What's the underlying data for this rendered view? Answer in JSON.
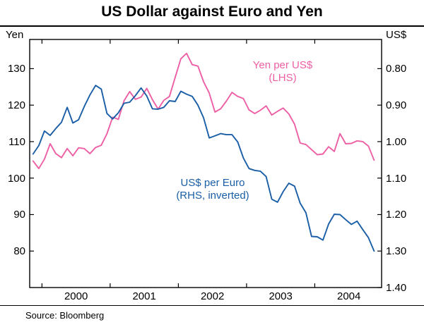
{
  "title": "US Dollar against Euro and Yen",
  "source": "Source: Bloomberg",
  "left_unit": "Yen",
  "right_unit": "US$",
  "annotations": {
    "yen": {
      "line1": "Yen per US$",
      "line2": "(LHS)",
      "color": "#ed5fa4"
    },
    "euro": {
      "line1": "US$ per Euro",
      "line2": "(RHS, inverted)",
      "color": "#1a5ea6"
    }
  },
  "chart_data": {
    "type": "line",
    "title": "US Dollar against Euro and Yen",
    "source": "Source: Bloomberg",
    "x_start": 1999.87,
    "x_step": 0.083333,
    "xlim": [
      1999.82,
      2004.98
    ],
    "x_ticks": [
      2000,
      2001,
      2002,
      2003,
      2004
    ],
    "x_tick_labels": [
      "2000",
      "2001",
      "2002",
      "2003",
      "2004"
    ],
    "grid": false,
    "legend": "in-plot colored annotations",
    "left_axis": {
      "label": "Yen",
      "ticks": [
        80,
        90,
        100,
        110,
        120,
        130
      ],
      "range": [
        70,
        138
      ]
    },
    "right_axis": {
      "label": "US$",
      "ticks": [
        0.8,
        0.9,
        1.0,
        1.1,
        1.2,
        1.3,
        1.4
      ],
      "range": [
        0.72,
        1.4
      ],
      "inverted": true
    },
    "series": [
      {
        "name": "Yen per US$ (LHS)",
        "axis": "left",
        "color": "#ed5fa4",
        "values": [
          104.7,
          102.6,
          105.2,
          109.4,
          106.7,
          105.6,
          108.1,
          106.1,
          108.3,
          108.1,
          106.7,
          108.4,
          109.0,
          112.2,
          116.7,
          116.1,
          121.2,
          123.7,
          121.6,
          122.2,
          124.6,
          121.5,
          118.9,
          121.3,
          122.4,
          127.6,
          132.7,
          134.2,
          131.1,
          130.7,
          126.4,
          123.3,
          118.1,
          119.0,
          121.1,
          123.5,
          122.4,
          121.8,
          118.7,
          117.7,
          118.6,
          119.8,
          117.3,
          118.3,
          119.2,
          117.6,
          114.8,
          109.6,
          109.2,
          107.8,
          106.4,
          106.6,
          108.6,
          107.3,
          112.2,
          109.4,
          109.5,
          110.2,
          110.0,
          108.8,
          104.9
        ]
      },
      {
        "name": "US$ per Euro (RHS, inverted)",
        "axis": "right",
        "color": "#1a5ea6",
        "values": [
          1.034,
          1.011,
          0.971,
          0.983,
          0.964,
          0.947,
          0.906,
          0.949,
          0.94,
          0.904,
          0.872,
          0.846,
          0.856,
          0.923,
          0.938,
          0.921,
          0.895,
          0.892,
          0.874,
          0.853,
          0.875,
          0.91,
          0.911,
          0.906,
          0.888,
          0.89,
          0.862,
          0.87,
          0.876,
          0.9,
          0.935,
          0.99,
          0.984,
          0.978,
          0.981,
          0.981,
          1.001,
          1.045,
          1.074,
          1.079,
          1.081,
          1.096,
          1.158,
          1.166,
          1.137,
          1.114,
          1.122,
          1.169,
          1.195,
          1.26,
          1.261,
          1.27,
          1.226,
          1.199,
          1.2,
          1.214,
          1.227,
          1.218,
          1.241,
          1.263,
          1.3
        ]
      }
    ]
  }
}
